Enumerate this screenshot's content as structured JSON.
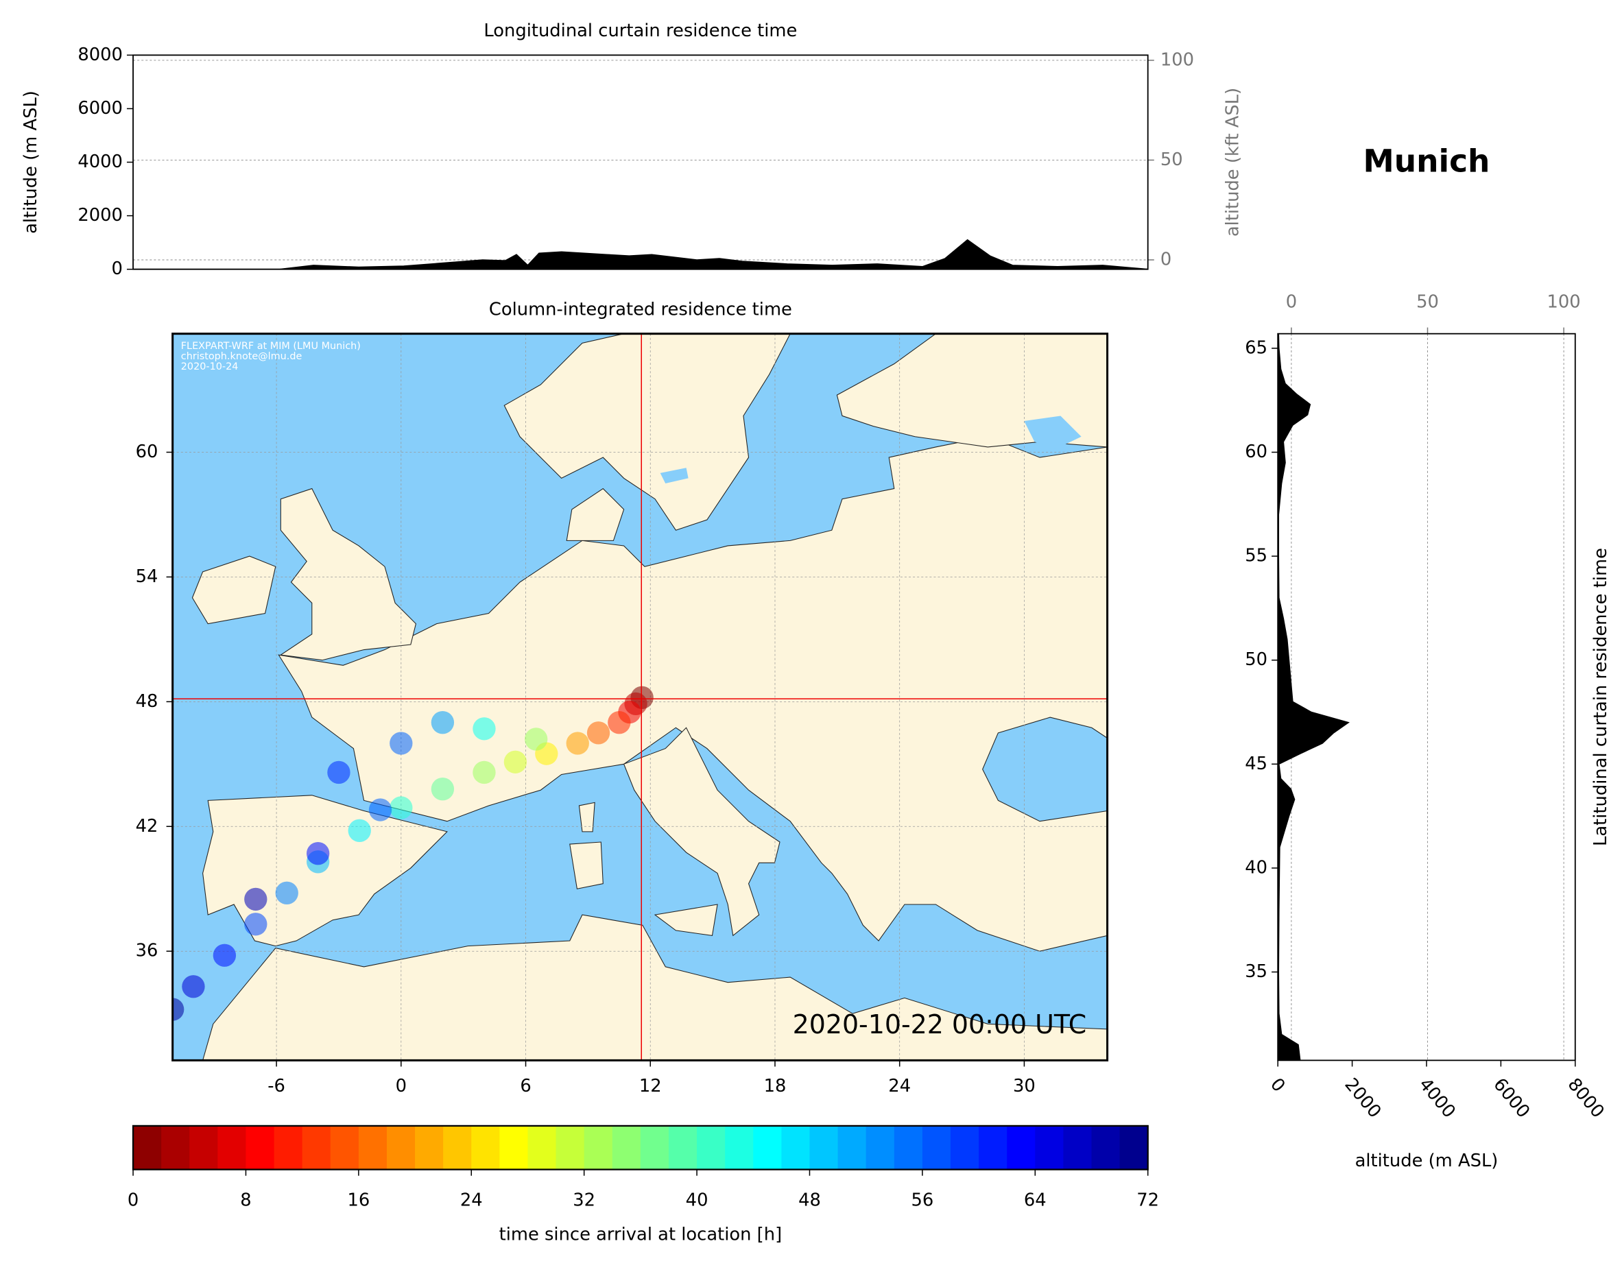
{
  "figure_title": "Munich",
  "chart_data": [
    {
      "type": "area",
      "title": "Longitudinal curtain residence time",
      "y_label": "altitude (m ASL)",
      "y2_label": "altitude (kft ASL)",
      "x": [
        -11,
        -4.5,
        -3,
        -1,
        1,
        3,
        4.5,
        5.5,
        6,
        6.5,
        7,
        8,
        9,
        10,
        11,
        12,
        13,
        14,
        15,
        16,
        18,
        20,
        22,
        24,
        25,
        26,
        27,
        28,
        30,
        32,
        34
      ],
      "values": [
        0,
        0,
        150,
        80,
        120,
        250,
        350,
        320,
        550,
        150,
        600,
        650,
        600,
        550,
        500,
        550,
        450,
        350,
        400,
        300,
        200,
        150,
        200,
        100,
        400,
        1100,
        500,
        150,
        100,
        150,
        0
      ],
      "color": "#000000",
      "xlim": [
        -11,
        34
      ],
      "ylim": [
        0,
        8000
      ],
      "yticks": [
        0,
        2000,
        4000,
        6000,
        8000
      ],
      "y2lim": [
        -4.7,
        102.6
      ],
      "y2ticks": [
        0,
        50,
        100
      ],
      "grid": "y2"
    },
    {
      "type": "map",
      "title": "Column-integrated residence time",
      "annotation": "2020-10-22 00:00 UTC",
      "credits": [
        "FLEXPART-WRF at MIM (LMU Munich)",
        "christoph.knote@lmu.de",
        "2020-10-24"
      ],
      "xlim": [
        -11,
        34
      ],
      "ylim": [
        30.75,
        65.7
      ],
      "xticks": [
        -6,
        0,
        6,
        12,
        18,
        24,
        30
      ],
      "yticks": [
        36,
        42,
        48,
        54,
        60
      ],
      "grid": true,
      "location": {
        "x": 11.57,
        "y": 48.14
      },
      "scatter": {
        "x": [
          11.6,
          11.3,
          11,
          10.5,
          9.5,
          8.5,
          7,
          5.5,
          4,
          2,
          0,
          -2,
          -4,
          -5.5,
          -7,
          -8.5,
          -10,
          -11,
          6.5,
          4,
          2,
          0,
          -3,
          -1,
          -4,
          -7
        ],
        "y": [
          48.2,
          47.9,
          47.5,
          47,
          46.5,
          46,
          45.5,
          45.1,
          44.6,
          43.8,
          42.9,
          41.8,
          40.3,
          38.8,
          37.3,
          35.8,
          34.3,
          33.2,
          46.2,
          46.7,
          47,
          46,
          44.6,
          42.8,
          40.7,
          38.5
        ],
        "values": [
          0,
          4,
          8,
          12,
          16,
          20,
          26,
          30,
          34,
          38,
          42,
          46,
          50,
          54,
          58,
          62,
          66,
          70,
          34,
          44,
          52,
          56,
          60,
          56,
          62,
          68
        ]
      },
      "colormap": "jet_r",
      "clim": [
        0,
        72
      ]
    },
    {
      "type": "area",
      "orientation": "horizontal",
      "x_label": "altitude (m ASL)",
      "y_label": "Latitudinal curtain residence time",
      "y": [
        30.75,
        31.5,
        32,
        33,
        35,
        38,
        41,
        42.5,
        43.3,
        43.8,
        44.3,
        45,
        45.5,
        46,
        46.5,
        47,
        47.5,
        48,
        49,
        50,
        51,
        52,
        53,
        55,
        57,
        58.5,
        59.5,
        60.5,
        61.3,
        61.8,
        62.3,
        62.8,
        63.3,
        64,
        65,
        65.7
      ],
      "values": [
        600,
        550,
        100,
        30,
        20,
        30,
        50,
        300,
        450,
        350,
        80,
        30,
        600,
        1200,
        1500,
        1900,
        900,
        400,
        350,
        300,
        250,
        150,
        30,
        20,
        20,
        100,
        200,
        150,
        400,
        800,
        870,
        500,
        200,
        80,
        30,
        20
      ],
      "color": "#000000",
      "xlim": [
        0,
        8000
      ],
      "xticks": [
        0,
        2000,
        4000,
        6000,
        8000
      ],
      "x2lim": [
        -4.96,
        104.2
      ],
      "x2ticks": [
        0,
        50,
        100
      ],
      "ylim": [
        30.75,
        65.7
      ],
      "yticks": [
        35,
        40,
        45,
        50,
        55,
        60,
        65
      ],
      "grid": "x2"
    },
    {
      "type": "colorbar",
      "label": "time since arrival at location [h]",
      "colormap": "jet_r",
      "lim": [
        0,
        72
      ],
      "ticks": [
        0,
        8,
        16,
        24,
        32,
        40,
        48,
        56,
        64,
        72
      ]
    }
  ]
}
